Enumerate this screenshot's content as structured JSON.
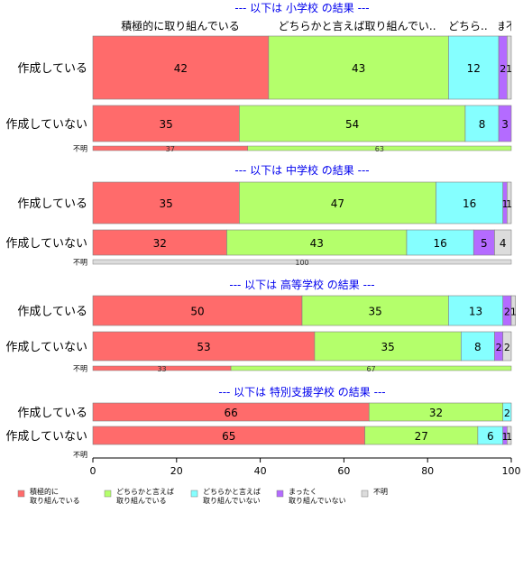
{
  "chart_data": {
    "type": "bar",
    "orientation": "horizontal",
    "stacked": true,
    "xlim": [
      0,
      100
    ],
    "x_ticks": [
      0,
      20,
      40,
      60,
      80,
      100
    ],
    "colors": [
      "#ff6b6b",
      "#b4ff6b",
      "#85ffff",
      "#b46bff",
      "#dcdcdc"
    ],
    "legend": {
      "placement": "bottom-left",
      "items": [
        {
          "line1": "積極的に",
          "line2": "取り組んでいる"
        },
        {
          "line1": "どちらかと言えば",
          "line2": "取り組んでいる"
        },
        {
          "line1": "どちらかと言えば",
          "line2": "取り組んでいない"
        },
        {
          "line1": "まったく",
          "line2": "取り組んでいない"
        },
        {
          "line1": "不明",
          "line2": ""
        }
      ]
    },
    "column_headers": [
      "積極的に取り組んでいる",
      "どちらかと言えば取り組んでい..",
      "どちら..",
      "ま",
      "不明"
    ],
    "groups": [
      {
        "title": "--- 以下は 小学校 の結果 ---",
        "rows": [
          {
            "label": "作成している",
            "values": [
              42,
              43,
              12,
              2,
              1
            ]
          },
          {
            "label": "作成していない",
            "values": [
              35,
              54,
              8,
              3,
              0
            ]
          }
        ],
        "unknown_label": "不明",
        "unknown_values": [
          37,
          63
        ]
      },
      {
        "title": "--- 以下は 中学校 の結果 ---",
        "rows": [
          {
            "label": "作成している",
            "values": [
              35,
              47,
              16,
              1,
              1
            ]
          },
          {
            "label": "作成していない",
            "values": [
              32,
              43,
              16,
              5,
              4
            ]
          }
        ],
        "unknown_label": "不明",
        "unknown_values": [
          100
        ]
      },
      {
        "title": "--- 以下は 高等学校 の結果 ---",
        "rows": [
          {
            "label": "作成している",
            "values": [
              50,
              35,
              13,
              2,
              1
            ]
          },
          {
            "label": "作成していない",
            "values": [
              53,
              35,
              8,
              2,
              2
            ]
          }
        ],
        "unknown_label": "不明",
        "unknown_values": [
          33,
          67
        ]
      },
      {
        "title": "--- 以下は 特別支援学校 の結果 ---",
        "rows": [
          {
            "label": "作成している",
            "values": [
              66,
              32,
              2,
              0,
              0
            ]
          },
          {
            "label": "作成していない",
            "values": [
              65,
              27,
              6,
              1,
              1
            ]
          }
        ],
        "unknown_label": "不明",
        "unknown_values": []
      }
    ]
  }
}
